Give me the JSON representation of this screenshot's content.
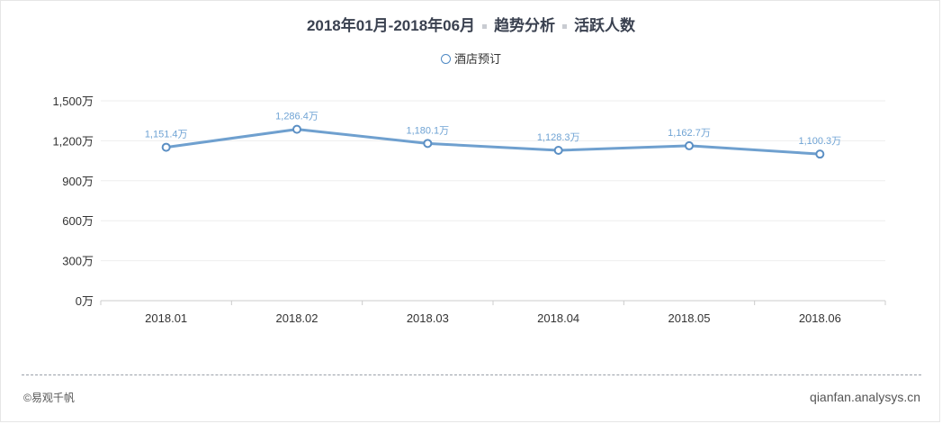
{
  "header": {
    "date_range": "2018年01月-2018年06月",
    "section": "趋势分析",
    "metric": "活跃人数"
  },
  "legend": {
    "label": "酒店预订",
    "marker_color": "#4e89c4"
  },
  "footer": {
    "copyright": "©易观千帆",
    "site": "qianfan.analysys.cn"
  },
  "colors": {
    "line": "#6fa0cf",
    "point_stroke": "#5b8fc4",
    "data_label": "#6fa3d4",
    "axis_text": "#333333",
    "grid": "#eeeeee"
  },
  "chart_data": {
    "type": "line",
    "title": "",
    "xlabel": "",
    "ylabel": "",
    "categories": [
      "2018.01",
      "2018.02",
      "2018.03",
      "2018.04",
      "2018.05",
      "2018.06"
    ],
    "series": [
      {
        "name": "酒店预订",
        "values": [
          1151.4,
          1286.4,
          1180.1,
          1128.3,
          1162.7,
          1100.3
        ],
        "labels": [
          "1,151.4万",
          "1,286.4万",
          "1,180.1万",
          "1,128.3万",
          "1,162.7万",
          "1,100.3万"
        ]
      }
    ],
    "ylim": [
      0,
      1500
    ],
    "yticks": [
      0,
      300,
      600,
      900,
      1200,
      1500
    ],
    "ytick_labels": [
      "0万",
      "300万",
      "600万",
      "900万",
      "1,200万",
      "1,500万"
    ],
    "grid": true,
    "legend_position": "top-center"
  }
}
